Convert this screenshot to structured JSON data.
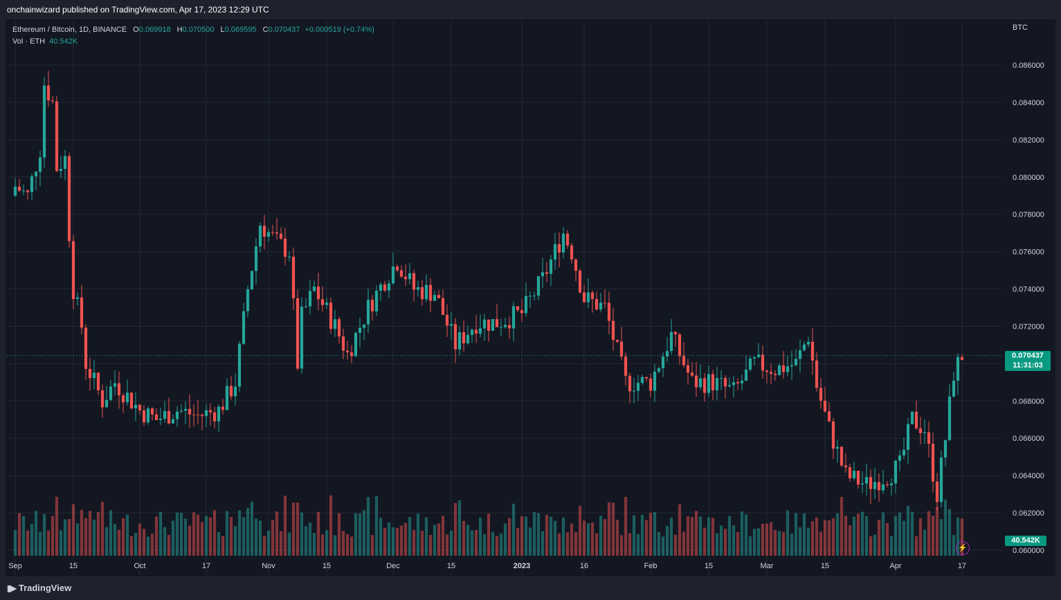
{
  "header": {
    "published": "onchainwizard published on TradingView.com, Apr 17, 2023 12:29 UTC"
  },
  "legend": {
    "symbol": "Ethereum / Bitcoin, 1D, BINANCE",
    "o_label": "O",
    "o": "0.069918",
    "h_label": "H",
    "h": "0.070500",
    "l_label": "L",
    "l": "0.069595",
    "c_label": "C",
    "c": "0.070437",
    "change": "+0.000519 (+0.74%)",
    "vol_label": "Vol · ETH",
    "vol": "40.542K"
  },
  "price_axis": {
    "unit": "BTC",
    "ticks": [
      "0.086000",
      "0.084000",
      "0.082000",
      "0.080000",
      "0.078000",
      "0.076000",
      "0.074000",
      "0.072000",
      "0.070000",
      "0.068000",
      "0.066000",
      "0.064000",
      "0.062000",
      "0.060000"
    ],
    "last_price": "0.070437",
    "countdown": "11:31:03",
    "last_volume": "40.542K"
  },
  "time_axis": {
    "labels": [
      "Sep",
      "15",
      "Oct",
      "17",
      "Nov",
      "15",
      "Dec",
      "15",
      "2023",
      "16",
      "Feb",
      "15",
      "Mar",
      "15",
      "Apr",
      "17"
    ]
  },
  "branding": {
    "name": "TradingView"
  },
  "colors": {
    "up": "#26a69a",
    "down": "#ef5350",
    "background": "#131722",
    "grid": "#232833"
  },
  "icons": {
    "logo": "tradingview-logo-icon",
    "alert": "lightning-icon"
  },
  "chart_data": {
    "type": "candlestick",
    "title": "Ethereum / Bitcoin, 1D, BINANCE",
    "ylabel": "BTC",
    "ylim": [
      0.0599,
      0.0878
    ],
    "x_start": "2022-09-01",
    "x_end": "2023-04-17",
    "grid": true,
    "series": [
      {
        "name": "ETHBTC",
        "points": [
          {
            "x": "2022-09-01",
            "y": 0.0795
          },
          {
            "x": "2022-09-04",
            "y": 0.079
          },
          {
            "x": "2022-09-07",
            "y": 0.0815
          },
          {
            "x": "2022-09-08",
            "y": 0.085
          },
          {
            "x": "2022-09-10",
            "y": 0.084
          },
          {
            "x": "2022-09-11",
            "y": 0.0805
          },
          {
            "x": "2022-09-13",
            "y": 0.081
          },
          {
            "x": "2022-09-14",
            "y": 0.077
          },
          {
            "x": "2022-09-15",
            "y": 0.074
          },
          {
            "x": "2022-09-17",
            "y": 0.072
          },
          {
            "x": "2022-09-18",
            "y": 0.07
          },
          {
            "x": "2022-09-20",
            "y": 0.069
          },
          {
            "x": "2022-09-22",
            "y": 0.068
          },
          {
            "x": "2022-09-25",
            "y": 0.069
          },
          {
            "x": "2022-10-01",
            "y": 0.0675
          },
          {
            "x": "2022-10-05",
            "y": 0.067
          },
          {
            "x": "2022-10-10",
            "y": 0.0675
          },
          {
            "x": "2022-10-15",
            "y": 0.0672
          },
          {
            "x": "2022-10-20",
            "y": 0.0675
          },
          {
            "x": "2022-10-24",
            "y": 0.069
          },
          {
            "x": "2022-10-27",
            "y": 0.074
          },
          {
            "x": "2022-10-30",
            "y": 0.0775
          },
          {
            "x": "2022-11-03",
            "y": 0.0765
          },
          {
            "x": "2022-11-06",
            "y": 0.076
          },
          {
            "x": "2022-11-08",
            "y": 0.07
          },
          {
            "x": "2022-11-09",
            "y": 0.0725
          },
          {
            "x": "2022-11-12",
            "y": 0.074
          },
          {
            "x": "2022-11-17",
            "y": 0.072
          },
          {
            "x": "2022-11-20",
            "y": 0.0705
          },
          {
            "x": "2022-11-25",
            "y": 0.073
          },
          {
            "x": "2022-11-29",
            "y": 0.0745
          },
          {
            "x": "2022-12-02",
            "y": 0.0755
          },
          {
            "x": "2022-12-06",
            "y": 0.074
          },
          {
            "x": "2022-12-11",
            "y": 0.0738
          },
          {
            "x": "2022-12-16",
            "y": 0.071
          },
          {
            "x": "2022-12-21",
            "y": 0.0722
          },
          {
            "x": "2022-12-26",
            "y": 0.0722
          },
          {
            "x": "2023-01-01",
            "y": 0.0727
          },
          {
            "x": "2023-01-06",
            "y": 0.0745
          },
          {
            "x": "2023-01-11",
            "y": 0.077
          },
          {
            "x": "2023-01-13",
            "y": 0.076
          },
          {
            "x": "2023-01-16",
            "y": 0.0735
          },
          {
            "x": "2023-01-21",
            "y": 0.073
          },
          {
            "x": "2023-01-26",
            "y": 0.069
          },
          {
            "x": "2023-02-01",
            "y": 0.069
          },
          {
            "x": "2023-02-06",
            "y": 0.0715
          },
          {
            "x": "2023-02-11",
            "y": 0.069
          },
          {
            "x": "2023-02-16",
            "y": 0.069
          },
          {
            "x": "2023-02-21",
            "y": 0.0685
          },
          {
            "x": "2023-02-26",
            "y": 0.07
          },
          {
            "x": "2023-03-03",
            "y": 0.0697
          },
          {
            "x": "2023-03-08",
            "y": 0.07
          },
          {
            "x": "2023-03-11",
            "y": 0.0715
          },
          {
            "x": "2023-03-13",
            "y": 0.0688
          },
          {
            "x": "2023-03-16",
            "y": 0.0665
          },
          {
            "x": "2023-03-20",
            "y": 0.064
          },
          {
            "x": "2023-03-25",
            "y": 0.0635
          },
          {
            "x": "2023-03-30",
            "y": 0.064
          },
          {
            "x": "2023-04-02",
            "y": 0.0645
          },
          {
            "x": "2023-04-05",
            "y": 0.067
          },
          {
            "x": "2023-04-08",
            "y": 0.0665
          },
          {
            "x": "2023-04-11",
            "y": 0.063
          },
          {
            "x": "2023-04-13",
            "y": 0.066
          },
          {
            "x": "2023-04-15",
            "y": 0.0695
          },
          {
            "x": "2023-04-17",
            "y": 0.070437
          }
        ]
      }
    ]
  }
}
